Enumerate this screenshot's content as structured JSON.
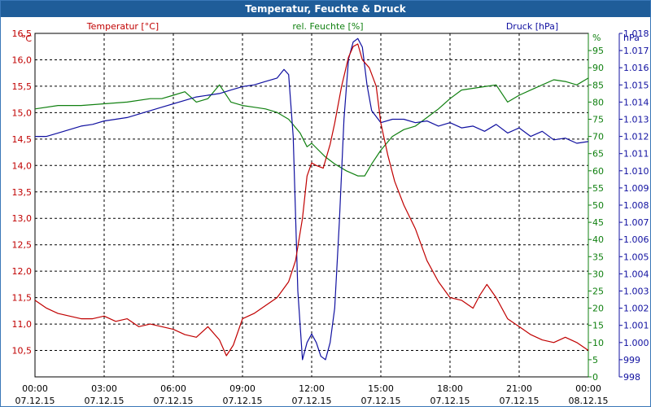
{
  "window": {
    "title": "Temperatur, Feuchte & Druck"
  },
  "chart_data": {
    "type": "line",
    "title": "Temperatur, Feuchte & Druck",
    "xlabel": "",
    "x_ticks": [
      {
        "time": "00:00",
        "date": "07.12.15"
      },
      {
        "time": "03:00",
        "date": "07.12.15"
      },
      {
        "time": "06:00",
        "date": "07.12.15"
      },
      {
        "time": "09:00",
        "date": "07.12.15"
      },
      {
        "time": "12:00",
        "date": "07.12.15"
      },
      {
        "time": "15:00",
        "date": "07.12.15"
      },
      {
        "time": "18:00",
        "date": "07.12.15"
      },
      {
        "time": "21:00",
        "date": "07.12.15"
      },
      {
        "time": "00:00",
        "date": "08.12.15"
      }
    ],
    "xlim_hours": [
      0,
      24
    ],
    "axes": {
      "temperature": {
        "label": "Temperatur [°C]",
        "unit": "°C",
        "color": "#c00000",
        "ylim": [
          10.0,
          16.5
        ],
        "ticks": [
          "10,5",
          "11,0",
          "11,5",
          "12,0",
          "12,5",
          "13,0",
          "13,5",
          "14,0",
          "14,5",
          "15,0",
          "15,5",
          "16,0",
          "16,5"
        ]
      },
      "humidity": {
        "label": "rel. Feuchte [%]",
        "unit": "%",
        "color": "#108010",
        "ylim": [
          0,
          100
        ],
        "ticks": [
          "0",
          "5",
          "10",
          "15",
          "20",
          "25",
          "30",
          "35",
          "40",
          "45",
          "50",
          "55",
          "60",
          "65",
          "70",
          "75",
          "80",
          "85",
          "90",
          "95"
        ]
      },
      "pressure": {
        "label": "Druck [hPa]",
        "unit": "hPa",
        "color": "#1010a0",
        "ylim": [
          998,
          1018
        ],
        "ticks": [
          "998",
          "999",
          "1.000",
          "1.001",
          "1.002",
          "1.003",
          "1.004",
          "1.005",
          "1.006",
          "1.007",
          "1.008",
          "1.009",
          "1.010",
          "1.011",
          "1.012",
          "1.013",
          "1.014",
          "1.015",
          "1.016",
          "1.017",
          "1.018"
        ]
      }
    },
    "grid": true,
    "series": [
      {
        "name": "Temperatur [°C]",
        "axis": "temperature",
        "color": "#c00000",
        "x": [
          0,
          0.5,
          1,
          1.5,
          2,
          2.5,
          3,
          3.5,
          4,
          4.5,
          5,
          5.5,
          6,
          6.5,
          7,
          7.5,
          8,
          8.3,
          8.6,
          9,
          9.5,
          10,
          10.5,
          11,
          11.3,
          11.6,
          11.8,
          12,
          12.2,
          12.5,
          12.8,
          13,
          13.3,
          13.6,
          13.8,
          14,
          14.2,
          14.5,
          14.8,
          15,
          15.3,
          15.6,
          16,
          16.5,
          17,
          17.5,
          18,
          18.5,
          19,
          19.3,
          19.6,
          20,
          20.5,
          21,
          21.5,
          22,
          22.5,
          23,
          23.5,
          24
        ],
        "y": [
          11.45,
          11.3,
          11.2,
          11.15,
          11.1,
          11.1,
          11.15,
          11.05,
          11.1,
          10.95,
          11.0,
          10.95,
          10.9,
          10.8,
          10.75,
          10.95,
          10.7,
          10.4,
          10.6,
          11.1,
          11.2,
          11.35,
          11.5,
          11.8,
          12.2,
          13.0,
          13.8,
          14.05,
          14.0,
          13.95,
          14.4,
          14.8,
          15.5,
          16.05,
          16.25,
          16.3,
          16.0,
          15.85,
          15.5,
          14.8,
          14.2,
          13.7,
          13.25,
          12.8,
          12.2,
          11.8,
          11.5,
          11.45,
          11.3,
          11.55,
          11.75,
          11.5,
          11.1,
          10.95,
          10.8,
          10.7,
          10.65,
          10.75,
          10.65,
          10.5
        ]
      },
      {
        "name": "rel. Feuchte [%]",
        "axis": "humidity",
        "color": "#108010",
        "x": [
          0,
          1,
          2,
          3,
          4,
          5,
          5.5,
          6,
          6.5,
          7,
          7.5,
          8,
          8.5,
          9,
          9.5,
          10,
          10.5,
          11,
          11.5,
          11.8,
          12,
          12.3,
          12.6,
          13,
          13.5,
          14,
          14.3,
          14.6,
          15,
          15.5,
          16,
          16.5,
          17,
          17.5,
          18,
          18.5,
          19,
          19.5,
          20,
          20.5,
          21,
          21.5,
          22,
          22.5,
          23,
          23.5,
          24
        ],
        "y": [
          78,
          79,
          79,
          79.5,
          80,
          81,
          81,
          82,
          83,
          80,
          81,
          85,
          80,
          79,
          78.5,
          78,
          77,
          75,
          71,
          67,
          68,
          66,
          64,
          62,
          60,
          58.5,
          58.5,
          62,
          66,
          70,
          72,
          73,
          75.5,
          78,
          81,
          83.5,
          84,
          84.5,
          85,
          80,
          82,
          83.5,
          85,
          86.5,
          86,
          85,
          87
        ]
      },
      {
        "name": "Druck [hPa]",
        "axis": "pressure",
        "color": "#1010a0",
        "x": [
          0,
          0.5,
          1,
          1.5,
          2,
          2.5,
          3,
          3.5,
          4,
          4.5,
          5,
          5.5,
          6,
          6.5,
          7,
          7.5,
          8,
          8.5,
          9,
          9.5,
          10,
          10.5,
          10.8,
          11,
          11.2,
          11.4,
          11.6,
          11.8,
          12,
          12.2,
          12.4,
          12.6,
          12.8,
          13,
          13.2,
          13.4,
          13.6,
          13.8,
          14,
          14.2,
          14.4,
          14.6,
          15,
          15.5,
          16,
          16.5,
          17,
          17.5,
          18,
          18.5,
          19,
          19.5,
          20,
          20.5,
          21,
          21.5,
          22,
          22.5,
          23,
          23.5,
          24
        ],
        "y": [
          1012.0,
          1012.0,
          1012.2,
          1012.4,
          1012.6,
          1012.7,
          1012.9,
          1013.0,
          1013.1,
          1013.3,
          1013.5,
          1013.7,
          1013.9,
          1014.1,
          1014.3,
          1014.4,
          1014.5,
          1014.7,
          1014.9,
          1015.0,
          1015.2,
          1015.4,
          1015.9,
          1015.6,
          1012.0,
          1003.0,
          999.0,
          1000.0,
          1000.5,
          1000.0,
          999.2,
          999.0,
          1000.0,
          1002.0,
          1007.0,
          1013.0,
          1016.5,
          1017.5,
          1017.7,
          1017.2,
          1015.0,
          1013.5,
          1012.8,
          1013.0,
          1013.0,
          1012.8,
          1012.9,
          1012.6,
          1012.8,
          1012.5,
          1012.6,
          1012.3,
          1012.7,
          1012.2,
          1012.5,
          1012.0,
          1012.3,
          1011.8,
          1011.9,
          1011.6,
          1011.7
        ]
      }
    ]
  }
}
